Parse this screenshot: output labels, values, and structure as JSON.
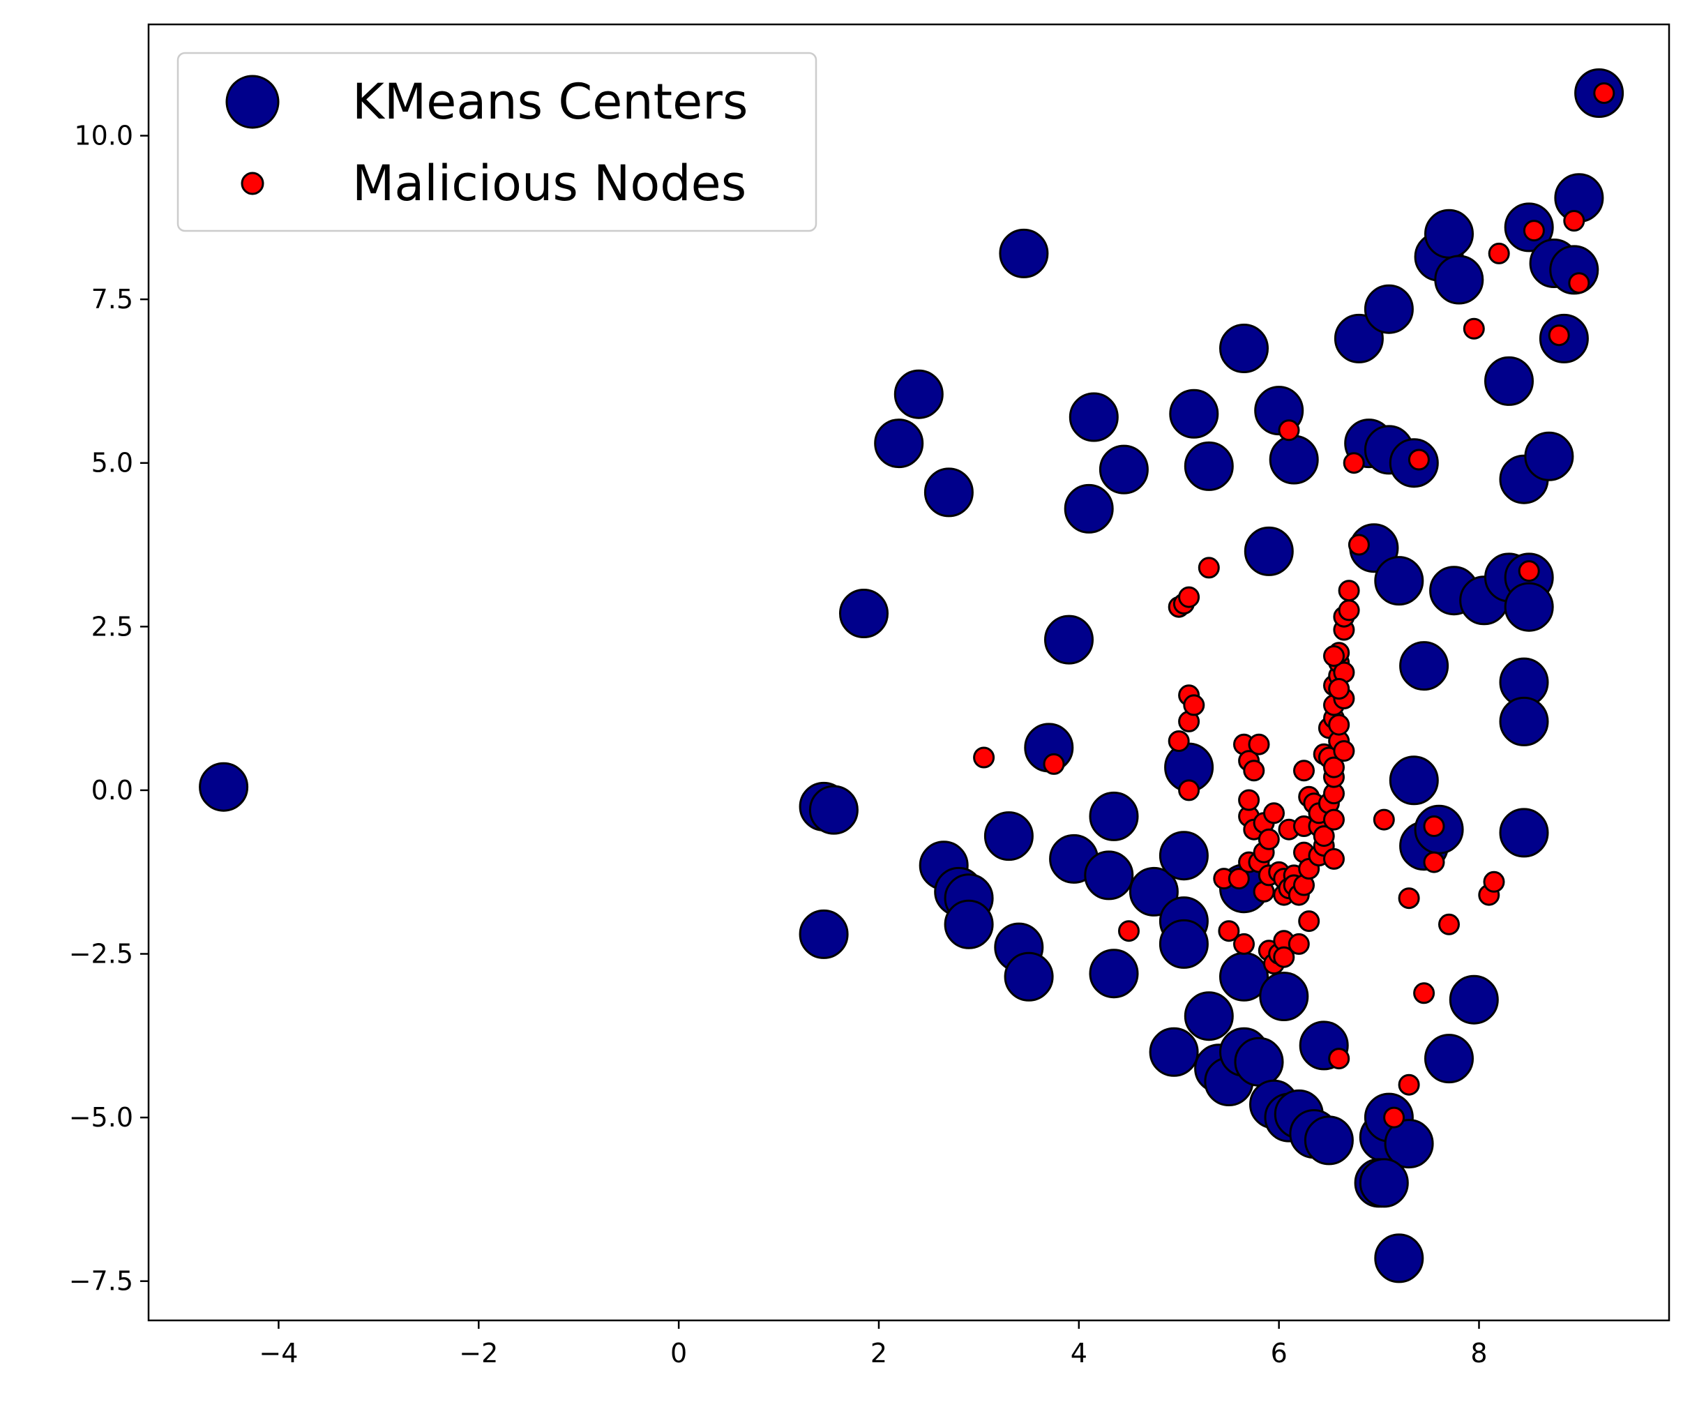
{
  "chart_data": {
    "type": "scatter",
    "xlim": [
      -5.3,
      9.9
    ],
    "ylim": [
      -8.1,
      11.7
    ],
    "x_ticks": [
      {
        "value": -4,
        "label": "−4"
      },
      {
        "value": -2,
        "label": "−2"
      },
      {
        "value": 0,
        "label": "0"
      },
      {
        "value": 2,
        "label": "2"
      },
      {
        "value": 4,
        "label": "4"
      },
      {
        "value": 6,
        "label": "6"
      },
      {
        "value": 8,
        "label": "8"
      }
    ],
    "y_ticks": [
      {
        "value": -7.5,
        "label": "−7.5"
      },
      {
        "value": -5.0,
        "label": "−5.0"
      },
      {
        "value": -2.5,
        "label": "−2.5"
      },
      {
        "value": 0.0,
        "label": "0.0"
      },
      {
        "value": 2.5,
        "label": "2.5"
      },
      {
        "value": 5.0,
        "label": "5.0"
      },
      {
        "value": 7.5,
        "label": "7.5"
      },
      {
        "value": 10.0,
        "label": "10.0"
      }
    ],
    "grid": false,
    "legend_position": "upper-left",
    "series": [
      {
        "name": "KMeans Centers",
        "color": "#00008b",
        "edge_color": "#000000",
        "marker_size": "large",
        "points": [
          [
            -4.55,
            0.05
          ],
          [
            1.45,
            -0.25
          ],
          [
            1.55,
            -0.3
          ],
          [
            1.45,
            -2.2
          ],
          [
            1.85,
            2.7
          ],
          [
            2.2,
            5.3
          ],
          [
            2.4,
            6.05
          ],
          [
            2.7,
            4.55
          ],
          [
            2.65,
            -1.15
          ],
          [
            2.8,
            -1.55
          ],
          [
            2.9,
            -1.65
          ],
          [
            2.9,
            -2.05
          ],
          [
            3.3,
            -0.7
          ],
          [
            3.4,
            -2.4
          ],
          [
            3.5,
            -2.85
          ],
          [
            3.45,
            8.2
          ],
          [
            3.7,
            0.65
          ],
          [
            3.9,
            2.3
          ],
          [
            3.95,
            -1.05
          ],
          [
            4.1,
            4.3
          ],
          [
            4.15,
            5.7
          ],
          [
            4.3,
            -1.3
          ],
          [
            4.35,
            -0.4
          ],
          [
            4.35,
            -2.8
          ],
          [
            4.45,
            4.9
          ],
          [
            4.75,
            -1.55
          ],
          [
            4.95,
            -4.0
          ],
          [
            5.05,
            -1.0
          ],
          [
            5.05,
            -2.0
          ],
          [
            5.05,
            -2.35
          ],
          [
            5.15,
            5.75
          ],
          [
            5.3,
            4.95
          ],
          [
            5.1,
            0.35
          ],
          [
            5.3,
            -3.45
          ],
          [
            5.4,
            -4.25
          ],
          [
            5.5,
            -4.45
          ],
          [
            5.65,
            -4.0
          ],
          [
            5.65,
            -1.5
          ],
          [
            5.65,
            -2.85
          ],
          [
            5.65,
            6.75
          ],
          [
            5.8,
            -4.15
          ],
          [
            6.0,
            5.8
          ],
          [
            6.05,
            -3.15
          ],
          [
            6.15,
            5.05
          ],
          [
            5.95,
            -4.8
          ],
          [
            6.1,
            -5.0
          ],
          [
            6.2,
            -4.95
          ],
          [
            5.9,
            3.65
          ],
          [
            6.35,
            -5.25
          ],
          [
            6.45,
            -3.9
          ],
          [
            6.5,
            -5.35
          ],
          [
            6.8,
            6.9
          ],
          [
            6.9,
            5.3
          ],
          [
            6.95,
            3.7
          ],
          [
            7.05,
            -5.3
          ],
          [
            7.1,
            5.2
          ],
          [
            7.1,
            7.35
          ],
          [
            7.1,
            -5.0
          ],
          [
            7.2,
            3.2
          ],
          [
            7.3,
            -5.4
          ],
          [
            7.0,
            -6.0
          ],
          [
            7.05,
            -6.0
          ],
          [
            7.2,
            -7.15
          ],
          [
            7.35,
            0.15
          ],
          [
            7.35,
            5.0
          ],
          [
            7.45,
            1.9
          ],
          [
            7.45,
            -0.85
          ],
          [
            7.6,
            -0.6
          ],
          [
            7.6,
            8.15
          ],
          [
            7.7,
            8.5
          ],
          [
            7.75,
            3.05
          ],
          [
            7.8,
            7.8
          ],
          [
            7.7,
            -4.1
          ],
          [
            7.95,
            -3.2
          ],
          [
            8.05,
            2.9
          ],
          [
            8.3,
            6.25
          ],
          [
            8.3,
            3.25
          ],
          [
            8.45,
            4.75
          ],
          [
            8.45,
            1.65
          ],
          [
            8.45,
            1.05
          ],
          [
            8.45,
            -0.65
          ],
          [
            8.5,
            3.25
          ],
          [
            8.5,
            8.6
          ],
          [
            8.5,
            2.8
          ],
          [
            8.7,
            5.1
          ],
          [
            8.75,
            8.05
          ],
          [
            8.85,
            6.9
          ],
          [
            8.95,
            7.95
          ],
          [
            9.0,
            9.05
          ],
          [
            9.2,
            10.65
          ]
        ]
      },
      {
        "name": "Malicious Nodes",
        "color": "#ff0000",
        "edge_color": "#000000",
        "marker_size": "small",
        "points": [
          [
            3.05,
            0.5
          ],
          [
            3.75,
            0.4
          ],
          [
            4.5,
            -2.15
          ],
          [
            5.0,
            2.8
          ],
          [
            5.05,
            2.85
          ],
          [
            5.1,
            2.95
          ],
          [
            5.3,
            3.4
          ],
          [
            5.0,
            0.75
          ],
          [
            5.1,
            1.05
          ],
          [
            5.1,
            1.45
          ],
          [
            5.15,
            1.3
          ],
          [
            5.1,
            0.0
          ],
          [
            5.45,
            -1.35
          ],
          [
            5.5,
            -2.15
          ],
          [
            5.6,
            -1.35
          ],
          [
            5.65,
            -2.35
          ],
          [
            5.65,
            0.7
          ],
          [
            5.7,
            -0.4
          ],
          [
            5.7,
            -1.1
          ],
          [
            5.7,
            0.45
          ],
          [
            5.75,
            0.3
          ],
          [
            5.8,
            0.7
          ],
          [
            5.7,
            -0.15
          ],
          [
            5.75,
            -0.6
          ],
          [
            5.8,
            -1.1
          ],
          [
            5.85,
            -1.55
          ],
          [
            5.85,
            -0.5
          ],
          [
            5.85,
            -0.95
          ],
          [
            5.9,
            -1.3
          ],
          [
            5.9,
            -0.75
          ],
          [
            5.9,
            -2.45
          ],
          [
            5.95,
            -2.65
          ],
          [
            5.95,
            -0.35
          ],
          [
            6.0,
            -2.5
          ],
          [
            6.0,
            -1.25
          ],
          [
            6.05,
            -2.3
          ],
          [
            6.05,
            -1.35
          ],
          [
            6.05,
            -2.55
          ],
          [
            6.05,
            -1.6
          ],
          [
            6.1,
            -1.5
          ],
          [
            6.1,
            -0.6
          ],
          [
            6.15,
            -1.3
          ],
          [
            6.15,
            -1.45
          ],
          [
            6.2,
            -1.6
          ],
          [
            6.2,
            -2.35
          ],
          [
            6.25,
            -1.45
          ],
          [
            6.25,
            -0.55
          ],
          [
            6.25,
            -0.95
          ],
          [
            6.25,
            0.3
          ],
          [
            6.3,
            -2.0
          ],
          [
            6.3,
            -1.2
          ],
          [
            6.3,
            -0.1
          ],
          [
            6.35,
            -0.2
          ],
          [
            6.4,
            -0.55
          ],
          [
            6.4,
            -1.0
          ],
          [
            6.4,
            -0.35
          ],
          [
            6.45,
            -0.85
          ],
          [
            6.45,
            -0.7
          ],
          [
            6.45,
            0.55
          ],
          [
            6.5,
            0.5
          ],
          [
            6.5,
            0.95
          ],
          [
            6.5,
            -0.2
          ],
          [
            6.55,
            -0.05
          ],
          [
            6.55,
            0.2
          ],
          [
            6.55,
            0.35
          ],
          [
            6.55,
            -1.05
          ],
          [
            6.55,
            -0.45
          ],
          [
            6.55,
            1.1
          ],
          [
            6.55,
            1.3
          ],
          [
            6.55,
            1.6
          ],
          [
            6.6,
            1.75
          ],
          [
            6.6,
            0.75
          ],
          [
            6.6,
            1.95
          ],
          [
            6.6,
            2.1
          ],
          [
            6.6,
            1.0
          ],
          [
            6.65,
            0.6
          ],
          [
            6.65,
            1.4
          ],
          [
            6.65,
            2.45
          ],
          [
            6.65,
            2.65
          ],
          [
            6.7,
            2.75
          ],
          [
            6.7,
            3.05
          ],
          [
            6.65,
            1.8
          ],
          [
            6.55,
            2.05
          ],
          [
            6.6,
            1.55
          ],
          [
            6.1,
            5.5
          ],
          [
            6.6,
            -4.1
          ],
          [
            6.75,
            5.0
          ],
          [
            6.8,
            3.75
          ],
          [
            7.05,
            -0.45
          ],
          [
            7.15,
            -5.0
          ],
          [
            7.3,
            -1.65
          ],
          [
            7.3,
            -4.5
          ],
          [
            7.4,
            5.05
          ],
          [
            7.45,
            -3.1
          ],
          [
            7.55,
            -1.1
          ],
          [
            7.55,
            -0.55
          ],
          [
            7.7,
            -2.05
          ],
          [
            7.95,
            7.05
          ],
          [
            8.1,
            -1.6
          ],
          [
            8.15,
            -1.4
          ],
          [
            8.2,
            8.2
          ],
          [
            8.5,
            3.35
          ],
          [
            8.55,
            8.55
          ],
          [
            8.8,
            6.95
          ],
          [
            8.95,
            8.7
          ],
          [
            9.0,
            7.75
          ],
          [
            9.25,
            10.65
          ]
        ]
      }
    ]
  }
}
